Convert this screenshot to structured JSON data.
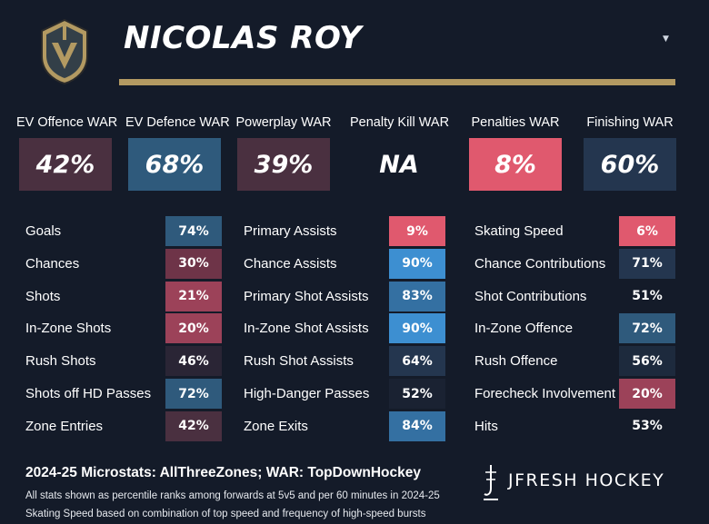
{
  "header": {
    "player_name": "NICOLAS ROY",
    "dropdown_icon": "chevron-down-icon",
    "team_logo": "golden-knights-helmet-logo",
    "accent_color": "#b39a62"
  },
  "war": [
    {
      "label": "EV Offence WAR",
      "value": "42%",
      "color": "#4a3040"
    },
    {
      "label": "EV Defence WAR",
      "value": "68%",
      "color": "#2f5a7c"
    },
    {
      "label": "Powerplay WAR",
      "value": "39%",
      "color": "#4a3040"
    },
    {
      "label": "Penalty Kill WAR",
      "value": "NA",
      "color": "#141b29"
    },
    {
      "label": "Penalties WAR",
      "value": "8%",
      "color": "#e0596e"
    },
    {
      "label": "Finishing WAR",
      "value": "60%",
      "color": "#24364f"
    }
  ],
  "stats": {
    "col1": [
      {
        "label": "Goals",
        "value": "74%",
        "color": "#2f5a7c"
      },
      {
        "label": "Chances",
        "value": "30%",
        "color": "#6e3448"
      },
      {
        "label": "Shots",
        "value": "21%",
        "color": "#9c4259"
      },
      {
        "label": "In-Zone Shots",
        "value": "20%",
        "color": "#9c4259"
      },
      {
        "label": "Rush Shots",
        "value": "46%",
        "color": "#2a2535"
      },
      {
        "label": "Shots off HD Passes",
        "value": "72%",
        "color": "#2f5a7c"
      },
      {
        "label": "Zone Entries",
        "value": "42%",
        "color": "#4a3040"
      }
    ],
    "col2": [
      {
        "label": "Primary Assists",
        "value": "9%",
        "color": "#e0596e"
      },
      {
        "label": "Chance Assists",
        "value": "90%",
        "color": "#3d8fd1"
      },
      {
        "label": "Primary Shot Assists",
        "value": "83%",
        "color": "#3470a2"
      },
      {
        "label": "In-Zone Shot Assists",
        "value": "90%",
        "color": "#3d8fd1"
      },
      {
        "label": "Rush Shot Assists",
        "value": "64%",
        "color": "#24364f"
      },
      {
        "label": "High-Danger Passes",
        "value": "52%",
        "color": "#1a2232"
      },
      {
        "label": "Zone Exits",
        "value": "84%",
        "color": "#3470a2"
      }
    ],
    "col3": [
      {
        "label": "Skating Speed",
        "value": "6%",
        "color": "#e0596e"
      },
      {
        "label": "Chance Contributions",
        "value": "71%",
        "color": "#24364f"
      },
      {
        "label": "Shot Contributions",
        "value": "51%",
        "color": "#141b29"
      },
      {
        "label": "In-Zone Offence",
        "value": "72%",
        "color": "#2f5a7c"
      },
      {
        "label": "Rush Offence",
        "value": "56%",
        "color": "#1d2a3d"
      },
      {
        "label": "Forecheck Involvement",
        "value": "20%",
        "color": "#9c4259"
      },
      {
        "label": "Hits",
        "value": "53%",
        "color": "#141b29"
      }
    ]
  },
  "footer": {
    "season": "2024-25 Microstats: ",
    "microstats_source": "AllThreeZones",
    "war_prefix": "; WAR: ",
    "war_source": "TopDownHockey",
    "note1": "All stats shown as percentile ranks among forwards at 5v5 and per 60 minutes in 2024-25",
    "note2": "Skating Speed based on combination of top speed and frequency of high-speed bursts",
    "brand": "JFRESH HOCKEY",
    "brand_icon": "jfresh-skate-icon"
  }
}
